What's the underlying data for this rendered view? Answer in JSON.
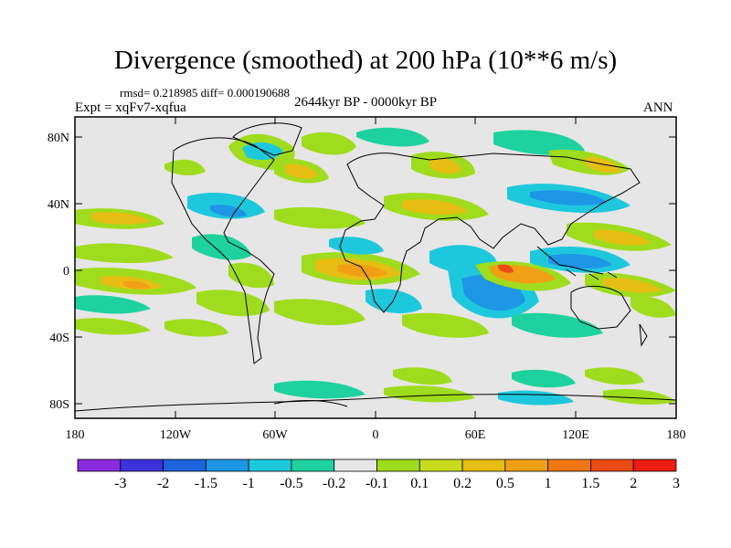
{
  "title": "Divergence (smoothed) at 200 hPa (10**6 m/s)",
  "stats": "rmsd= 0.218985 diff= 0.000190688",
  "experiment": "Expt = xqFv7-xqfua",
  "period": "2644kyr BP - 0000kyr BP",
  "season": "ANN",
  "lat_ticks": [
    "80N",
    "40N",
    "0",
    "40S",
    "80S"
  ],
  "lon_ticks": [
    "180",
    "120W",
    "60W",
    "0",
    "60E",
    "120E",
    "180"
  ],
  "colorbar": {
    "labels": [
      "-3",
      "-2",
      "-1.5",
      "-1",
      "-0.5",
      "-0.2",
      "-0.1",
      "0.1",
      "0.2",
      "0.5",
      "1",
      "1.5",
      "2",
      "3"
    ],
    "colors": [
      "#8a2be2",
      "#3c32dc",
      "#1e64dc",
      "#1e96e6",
      "#1ec8dc",
      "#1ed2a0",
      "#e6e6e6",
      "#a0dc1e",
      "#c8dc1e",
      "#e6be14",
      "#f0a014",
      "#f07814",
      "#eb4b14",
      "#eb1e14"
    ]
  },
  "colors": {
    "land_outline": "#000000",
    "background": "#e6e6e6"
  }
}
